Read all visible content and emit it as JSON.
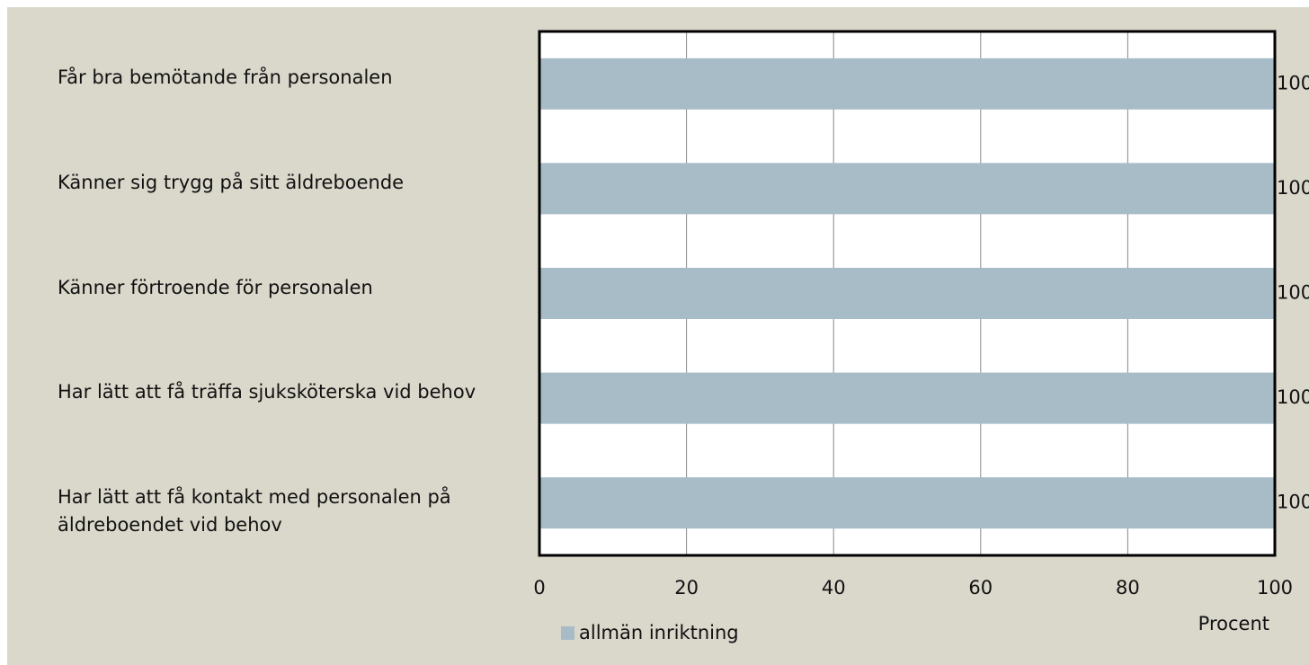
{
  "chart_data": {
    "type": "hbar",
    "categories": [
      "Får bra bemötande från personalen",
      "Känner sig trygg på sitt äldreboende",
      "Känner förtroende för personalen",
      "Har lätt att få träffa sjuksköterska vid behov",
      "Har lätt att få kontakt med personalen på äldreboendet vid behov"
    ],
    "series": [
      {
        "name": "allmän inriktning",
        "color": "#a7bcc7",
        "values": [
          100,
          100,
          100,
          100,
          100
        ]
      }
    ],
    "xlim": [
      0,
      100
    ],
    "xticks": [
      0,
      20,
      40,
      60,
      80,
      100
    ],
    "grid": true,
    "x_label": "Procent",
    "legend": "bottom-left"
  }
}
